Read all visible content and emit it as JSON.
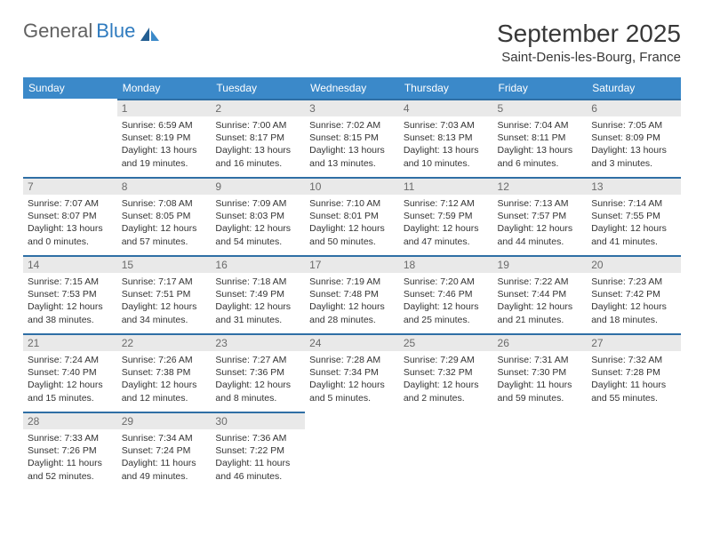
{
  "brand": {
    "name1": "General",
    "name2": "Blue"
  },
  "title": "September 2025",
  "location": "Saint-Denis-les-Bourg, France",
  "colors": {
    "header_bg": "#3b89c9",
    "header_text": "#ffffff",
    "cell_border": "#2f6fa5",
    "daynum_bg": "#e9e9e9",
    "daynum_text": "#6b6b6b",
    "body_text": "#333333",
    "bg": "#ffffff",
    "logo_gray": "#616161",
    "logo_blue": "#2f7bbf"
  },
  "weekdays": [
    "Sunday",
    "Monday",
    "Tuesday",
    "Wednesday",
    "Thursday",
    "Friday",
    "Saturday"
  ],
  "grid": [
    [
      null,
      {
        "d": "1",
        "sr": "Sunrise: 6:59 AM",
        "ss": "Sunset: 8:19 PM",
        "dl1": "Daylight: 13 hours",
        "dl2": "and 19 minutes."
      },
      {
        "d": "2",
        "sr": "Sunrise: 7:00 AM",
        "ss": "Sunset: 8:17 PM",
        "dl1": "Daylight: 13 hours",
        "dl2": "and 16 minutes."
      },
      {
        "d": "3",
        "sr": "Sunrise: 7:02 AM",
        "ss": "Sunset: 8:15 PM",
        "dl1": "Daylight: 13 hours",
        "dl2": "and 13 minutes."
      },
      {
        "d": "4",
        "sr": "Sunrise: 7:03 AM",
        "ss": "Sunset: 8:13 PM",
        "dl1": "Daylight: 13 hours",
        "dl2": "and 10 minutes."
      },
      {
        "d": "5",
        "sr": "Sunrise: 7:04 AM",
        "ss": "Sunset: 8:11 PM",
        "dl1": "Daylight: 13 hours",
        "dl2": "and 6 minutes."
      },
      {
        "d": "6",
        "sr": "Sunrise: 7:05 AM",
        "ss": "Sunset: 8:09 PM",
        "dl1": "Daylight: 13 hours",
        "dl2": "and 3 minutes."
      }
    ],
    [
      {
        "d": "7",
        "sr": "Sunrise: 7:07 AM",
        "ss": "Sunset: 8:07 PM",
        "dl1": "Daylight: 13 hours",
        "dl2": "and 0 minutes."
      },
      {
        "d": "8",
        "sr": "Sunrise: 7:08 AM",
        "ss": "Sunset: 8:05 PM",
        "dl1": "Daylight: 12 hours",
        "dl2": "and 57 minutes."
      },
      {
        "d": "9",
        "sr": "Sunrise: 7:09 AM",
        "ss": "Sunset: 8:03 PM",
        "dl1": "Daylight: 12 hours",
        "dl2": "and 54 minutes."
      },
      {
        "d": "10",
        "sr": "Sunrise: 7:10 AM",
        "ss": "Sunset: 8:01 PM",
        "dl1": "Daylight: 12 hours",
        "dl2": "and 50 minutes."
      },
      {
        "d": "11",
        "sr": "Sunrise: 7:12 AM",
        "ss": "Sunset: 7:59 PM",
        "dl1": "Daylight: 12 hours",
        "dl2": "and 47 minutes."
      },
      {
        "d": "12",
        "sr": "Sunrise: 7:13 AM",
        "ss": "Sunset: 7:57 PM",
        "dl1": "Daylight: 12 hours",
        "dl2": "and 44 minutes."
      },
      {
        "d": "13",
        "sr": "Sunrise: 7:14 AM",
        "ss": "Sunset: 7:55 PM",
        "dl1": "Daylight: 12 hours",
        "dl2": "and 41 minutes."
      }
    ],
    [
      {
        "d": "14",
        "sr": "Sunrise: 7:15 AM",
        "ss": "Sunset: 7:53 PM",
        "dl1": "Daylight: 12 hours",
        "dl2": "and 38 minutes."
      },
      {
        "d": "15",
        "sr": "Sunrise: 7:17 AM",
        "ss": "Sunset: 7:51 PM",
        "dl1": "Daylight: 12 hours",
        "dl2": "and 34 minutes."
      },
      {
        "d": "16",
        "sr": "Sunrise: 7:18 AM",
        "ss": "Sunset: 7:49 PM",
        "dl1": "Daylight: 12 hours",
        "dl2": "and 31 minutes."
      },
      {
        "d": "17",
        "sr": "Sunrise: 7:19 AM",
        "ss": "Sunset: 7:48 PM",
        "dl1": "Daylight: 12 hours",
        "dl2": "and 28 minutes."
      },
      {
        "d": "18",
        "sr": "Sunrise: 7:20 AM",
        "ss": "Sunset: 7:46 PM",
        "dl1": "Daylight: 12 hours",
        "dl2": "and 25 minutes."
      },
      {
        "d": "19",
        "sr": "Sunrise: 7:22 AM",
        "ss": "Sunset: 7:44 PM",
        "dl1": "Daylight: 12 hours",
        "dl2": "and 21 minutes."
      },
      {
        "d": "20",
        "sr": "Sunrise: 7:23 AM",
        "ss": "Sunset: 7:42 PM",
        "dl1": "Daylight: 12 hours",
        "dl2": "and 18 minutes."
      }
    ],
    [
      {
        "d": "21",
        "sr": "Sunrise: 7:24 AM",
        "ss": "Sunset: 7:40 PM",
        "dl1": "Daylight: 12 hours",
        "dl2": "and 15 minutes."
      },
      {
        "d": "22",
        "sr": "Sunrise: 7:26 AM",
        "ss": "Sunset: 7:38 PM",
        "dl1": "Daylight: 12 hours",
        "dl2": "and 12 minutes."
      },
      {
        "d": "23",
        "sr": "Sunrise: 7:27 AM",
        "ss": "Sunset: 7:36 PM",
        "dl1": "Daylight: 12 hours",
        "dl2": "and 8 minutes."
      },
      {
        "d": "24",
        "sr": "Sunrise: 7:28 AM",
        "ss": "Sunset: 7:34 PM",
        "dl1": "Daylight: 12 hours",
        "dl2": "and 5 minutes."
      },
      {
        "d": "25",
        "sr": "Sunrise: 7:29 AM",
        "ss": "Sunset: 7:32 PM",
        "dl1": "Daylight: 12 hours",
        "dl2": "and 2 minutes."
      },
      {
        "d": "26",
        "sr": "Sunrise: 7:31 AM",
        "ss": "Sunset: 7:30 PM",
        "dl1": "Daylight: 11 hours",
        "dl2": "and 59 minutes."
      },
      {
        "d": "27",
        "sr": "Sunrise: 7:32 AM",
        "ss": "Sunset: 7:28 PM",
        "dl1": "Daylight: 11 hours",
        "dl2": "and 55 minutes."
      }
    ],
    [
      {
        "d": "28",
        "sr": "Sunrise: 7:33 AM",
        "ss": "Sunset: 7:26 PM",
        "dl1": "Daylight: 11 hours",
        "dl2": "and 52 minutes."
      },
      {
        "d": "29",
        "sr": "Sunrise: 7:34 AM",
        "ss": "Sunset: 7:24 PM",
        "dl1": "Daylight: 11 hours",
        "dl2": "and 49 minutes."
      },
      {
        "d": "30",
        "sr": "Sunrise: 7:36 AM",
        "ss": "Sunset: 7:22 PM",
        "dl1": "Daylight: 11 hours",
        "dl2": "and 46 minutes."
      },
      null,
      null,
      null,
      null
    ]
  ]
}
